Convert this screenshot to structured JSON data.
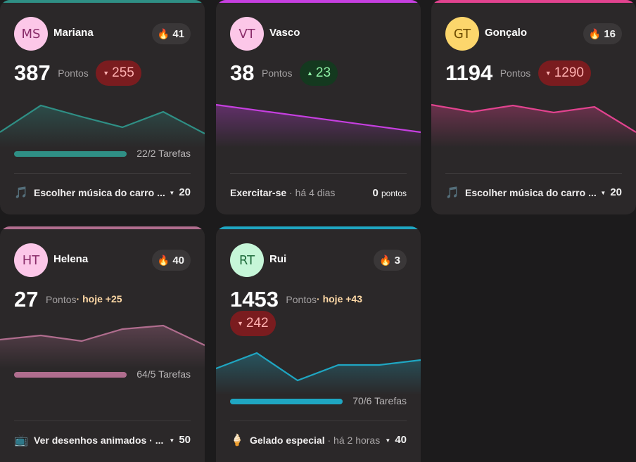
{
  "cards": [
    {
      "initials": "MS",
      "name": "Mariana",
      "streak": "41",
      "points": "387",
      "points_label": "Pontos",
      "delta": "255",
      "delta_dir": "down",
      "avatar_bg": "#fcc7e8",
      "avatar_fg": "#8a2d6a",
      "accent": "#2f8f85",
      "progress": 1.0,
      "tasks": "22/2 Tarefas",
      "footer_icon": "music-note-icon",
      "footer_icon_glyph": "🎵",
      "footer_text": "Escolher música do carro ...",
      "footer_value": "20"
    },
    {
      "initials": "VT",
      "name": "Vasco",
      "streak": "",
      "points": "38",
      "points_label": "Pontos",
      "delta": "23",
      "delta_dir": "up",
      "avatar_bg": "#fcc7e8",
      "avatar_fg": "#8a2d6a",
      "accent": "#c63fe0",
      "footer_text": "Exercitar-se",
      "footer_meta": " · há 4 dias",
      "footer_value": "0",
      "footer_value_unit": "pontos"
    },
    {
      "initials": "GT",
      "name": "Gonçalo",
      "streak": "16",
      "points": "1194",
      "points_label": "Pontos",
      "delta": "1290",
      "delta_dir": "down",
      "avatar_bg": "#fcd66c",
      "avatar_fg": "#6b4a00",
      "accent": "#e2438f",
      "footer_icon": "music-note-icon",
      "footer_icon_glyph": "🎵",
      "footer_text": "Escolher música do carro ...",
      "footer_value": "20"
    },
    {
      "initials": "HT",
      "name": "Helena",
      "streak": "40",
      "points": "27",
      "points_label": "Pontos",
      "today": "hoje +25",
      "avatar_bg": "#fcc7e8",
      "avatar_fg": "#8a2d6a",
      "accent": "#b06d8e",
      "progress": 1.0,
      "tasks": "64/5 Tarefas",
      "footer_icon": "tv-icon",
      "footer_icon_glyph": "📺",
      "footer_text": "Ver desenhos animados · ...",
      "footer_value": "50"
    },
    {
      "initials": "RT",
      "name": "Rui",
      "streak": "3",
      "points": "1453",
      "points_label": "Pontos",
      "today": "hoje +43",
      "delta": "242",
      "delta_dir": "down",
      "avatar_bg": "#c6f6d8",
      "avatar_fg": "#1f6b3c",
      "accent": "#1fa6c2",
      "progress": 1.0,
      "tasks": "70/6 Tarefas",
      "footer_icon": "ice-cream-icon",
      "footer_icon_glyph": "🍦",
      "footer_text": "Gelado especial",
      "footer_meta": " · há 2 horas",
      "footer_value": "40"
    }
  ]
}
